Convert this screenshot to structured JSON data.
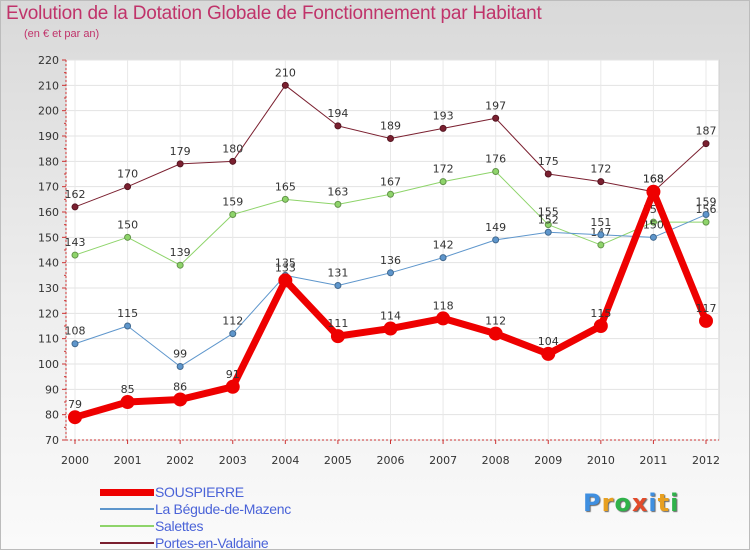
{
  "header": {
    "title": "Evolution de la Dotation Globale de Fonctionnement par Habitant",
    "subtitle": "(en € et par an)"
  },
  "logo": {
    "text": "Proxiti",
    "colors": [
      "#3f8fe0",
      "#e8a020",
      "#2fb24a",
      "#e24b2b",
      "#3f8fe0",
      "#e8a020",
      "#2fb24a"
    ]
  },
  "chart_data": {
    "type": "line",
    "title": "Evolution de la Dotation Globale de Fonctionnement par Habitant",
    "subtitle": "(en € et par an)",
    "x": [
      "2000",
      "2001",
      "2002",
      "2003",
      "2004",
      "2005",
      "2006",
      "2007",
      "2008",
      "2009",
      "2010",
      "2011",
      "2012"
    ],
    "ylim": [
      70,
      220
    ],
    "yticks": [
      70,
      80,
      90,
      100,
      110,
      120,
      130,
      140,
      150,
      160,
      170,
      180,
      190,
      200,
      210,
      220
    ],
    "grid": true,
    "legend_position": "bottom-left",
    "series": [
      {
        "name": "Portes-en-Valdaine",
        "color": "#7b2030",
        "width": 1,
        "values": [
          162,
          170,
          179,
          180,
          210,
          194,
          189,
          193,
          197,
          175,
          172,
          168,
          187
        ]
      },
      {
        "name": "Salettes",
        "color": "#8ed46a",
        "width": 1,
        "values": [
          143,
          150,
          139,
          159,
          165,
          163,
          167,
          172,
          176,
          155,
          147,
          156,
          156
        ]
      },
      {
        "name": "La Bégude-de-Mazenc",
        "color": "#5e96cc",
        "width": 1,
        "values": [
          108,
          115,
          99,
          112,
          135,
          131,
          136,
          142,
          149,
          152,
          151,
          150,
          159
        ]
      },
      {
        "name": "SOUSPIERRE",
        "color": "#ee0000",
        "width": 7,
        "values": [
          79,
          85,
          86,
          91,
          133,
          111,
          114,
          118,
          112,
          104,
          115,
          168,
          117
        ]
      }
    ],
    "legend_order": [
      "SOUSPIERRE",
      "La Bégude-de-Mazenc",
      "Salettes",
      "Portes-en-Valdaine"
    ]
  }
}
